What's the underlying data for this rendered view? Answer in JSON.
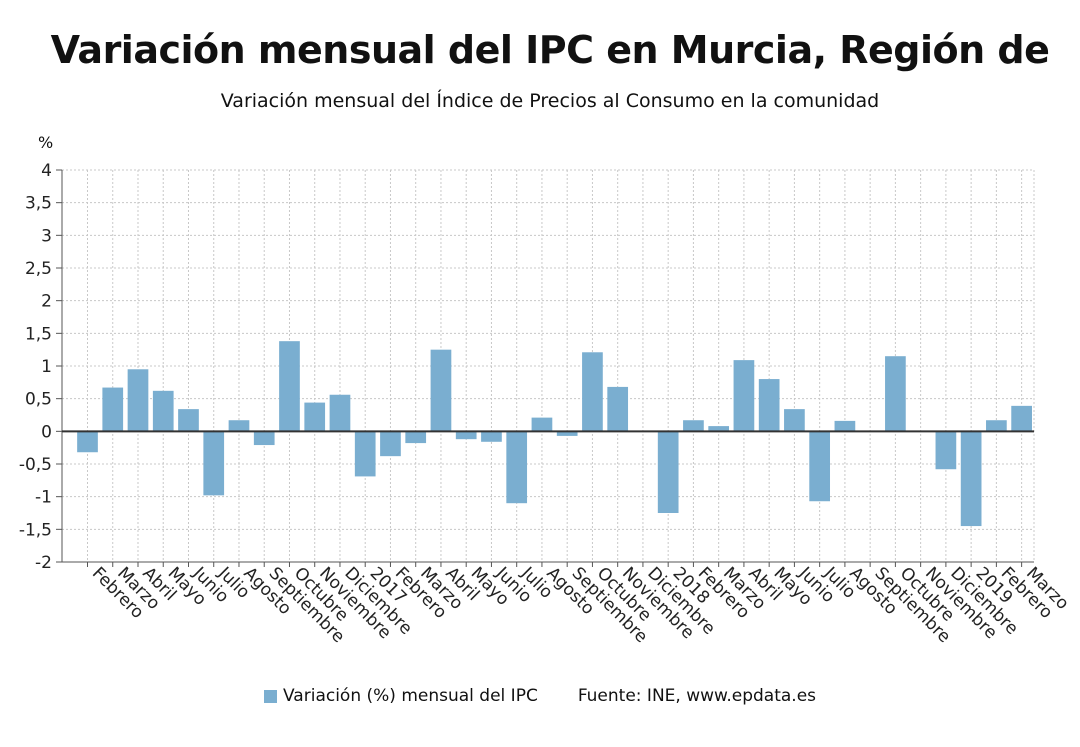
{
  "title": "Variación mensual del IPC en Murcia, Región de",
  "subtitle": "Variación mensual del Índice de Precios al Consumo en la comunidad",
  "colors": {
    "bar": "#7aaed0",
    "grid": "#c8c8c8",
    "zero_line": "#333333"
  },
  "legend": {
    "series_label": "Variación (%) mensual del IPC",
    "source": "Fuente: INE, www.epdata.es"
  },
  "chart_data": {
    "type": "bar",
    "title": "Variación mensual del IPC en Murcia, Región de",
    "ylabel": "%",
    "ylim": [
      -2,
      4
    ],
    "ytick_labels": [
      "4",
      "3,5",
      "3",
      "2,5",
      "2",
      "1,5",
      "1",
      "0,5",
      "0",
      "-0,5",
      "-1",
      "-1,5",
      "-2"
    ],
    "yticks": [
      4,
      3.5,
      3,
      2.5,
      2,
      1.5,
      1,
      0.5,
      0,
      -0.5,
      -1,
      -1.5,
      -2
    ],
    "grid": true,
    "categories": [
      "Febrero",
      "Marzo",
      "Abril",
      "Mayo",
      "Junio",
      "Julio",
      "Agosto",
      "Septiembre",
      "Octubre",
      "Noviembre",
      "Diciembre",
      "2017",
      "Febrero",
      "Marzo",
      "Abril",
      "Mayo",
      "Junio",
      "Julio",
      "Agosto",
      "Septiembre",
      "Octubre",
      "Noviembre",
      "Diciembre",
      "2018",
      "Febrero",
      "Marzo",
      "Abril",
      "Mayo",
      "Junio",
      "Julio",
      "Agosto",
      "Septiembre",
      "Octubre",
      "Noviembre",
      "Diciembre",
      "2019",
      "Febrero",
      "Marzo"
    ],
    "series": [
      {
        "name": "Variación (%) mensual del IPC",
        "values": [
          -0.32,
          0.67,
          0.95,
          0.62,
          0.34,
          -0.98,
          0.17,
          -0.21,
          1.38,
          0.44,
          0.56,
          -0.69,
          -0.38,
          -0.18,
          1.25,
          -0.12,
          -0.16,
          -1.1,
          0.21,
          -0.07,
          1.21,
          0.68,
          0.01,
          -1.25,
          0.17,
          0.08,
          1.09,
          0.8,
          0.34,
          -1.07,
          0.16,
          0.01,
          1.15,
          0.01,
          -0.58,
          -1.45,
          0.17,
          0.39
        ]
      }
    ]
  }
}
